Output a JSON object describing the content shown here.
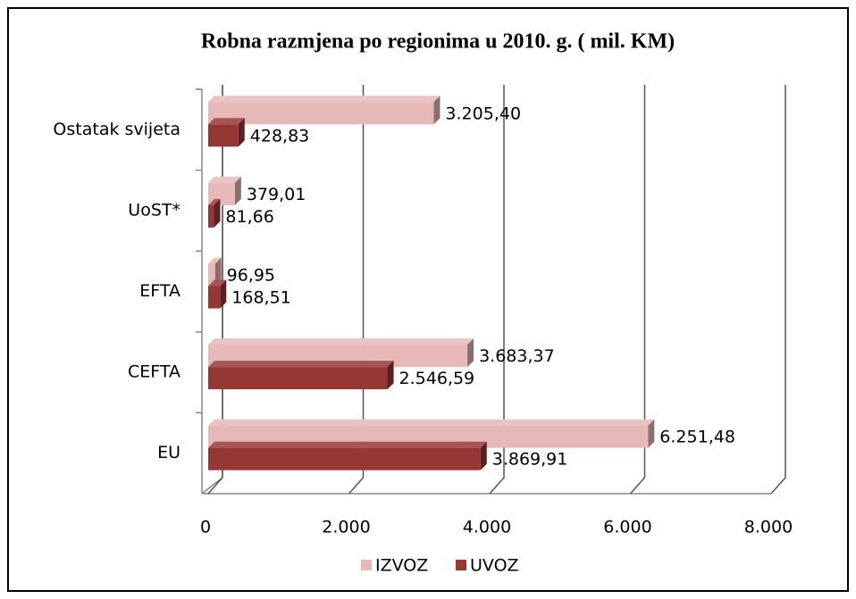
{
  "chart_data": {
    "type": "bar",
    "orientation": "horizontal",
    "title": "Robna razmjena po regionima u 2010. g. ( mil.  KM)",
    "categories": [
      "EU",
      "CEFTA",
      "EFTA",
      "UoST*",
      "Ostatak svijeta"
    ],
    "series": [
      {
        "name": "IZVOZ",
        "color": "#e6b9b8",
        "values": [
          6251.48,
          3683.37,
          96.95,
          379.01,
          3205.4
        ],
        "value_labels": [
          "6.251,48",
          "3.683,37",
          "96,95",
          "379,01",
          "3.205,40"
        ]
      },
      {
        "name": "UVOZ",
        "color": "#953735",
        "values": [
          3869.91,
          2546.59,
          168.51,
          81.66,
          428.83
        ],
        "value_labels": [
          "3.869,91",
          "2.546,59",
          "168,51",
          "81,66",
          "428,83"
        ]
      }
    ],
    "xlim": [
      0,
      8000
    ],
    "xticks": [
      0,
      {
        "value": 2000,
        "label": "2.000"
      },
      {
        "value": 4000,
        "label": "4.000"
      },
      {
        "value": 6000,
        "label": "6.000"
      },
      {
        "value": 8000,
        "label": "8.000"
      }
    ],
    "grid": true,
    "legend": "bottom"
  }
}
